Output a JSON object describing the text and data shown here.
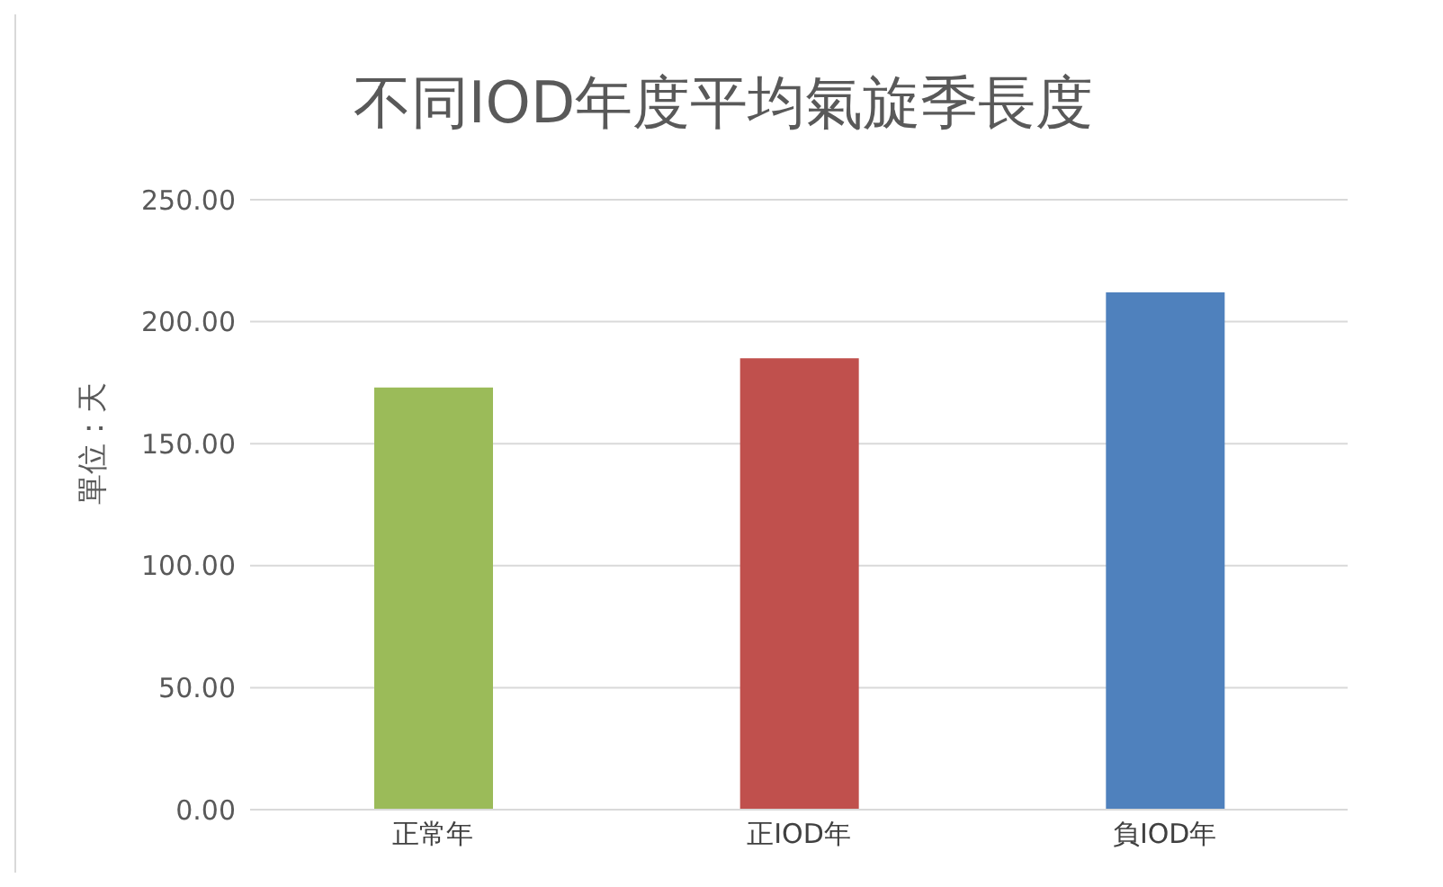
{
  "chart_data": {
    "type": "bar",
    "title": "不同IOD年度平均氣旋季長度",
    "ylabel": "單位：天",
    "categories": [
      "正常年",
      "正IOD年",
      "負IOD年"
    ],
    "values": [
      173,
      185,
      212
    ],
    "colors": [
      "#9bbb59",
      "#c0504d",
      "#4f81bd"
    ],
    "ylim": [
      0,
      250
    ],
    "yticks": [
      {
        "value": 0,
        "label": "0.00"
      },
      {
        "value": 50,
        "label": "50.00"
      },
      {
        "value": 100,
        "label": "100.00"
      },
      {
        "value": 150,
        "label": "150.00"
      },
      {
        "value": 200,
        "label": "200.00"
      },
      {
        "value": 250,
        "label": "250.00"
      }
    ],
    "grid": "y",
    "legend": false
  }
}
